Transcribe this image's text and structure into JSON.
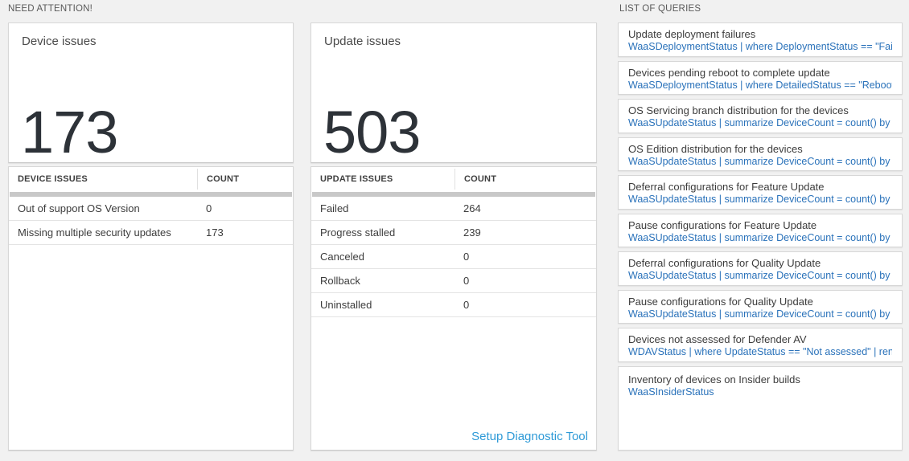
{
  "need_attention": {
    "section_title": "NEED ATTENTION!"
  },
  "device_tile": {
    "title": "Device issues",
    "count": "173"
  },
  "device_table": {
    "col1_header": "DEVICE ISSUES",
    "col2_header": "COUNT",
    "rows": [
      {
        "label": "Out of support OS Version",
        "count": "0"
      },
      {
        "label": "Missing multiple security updates",
        "count": "173"
      }
    ]
  },
  "update_tile": {
    "title": "Update issues",
    "count": "503"
  },
  "update_table": {
    "col1_header": "UPDATE ISSUES",
    "col2_header": "COUNT",
    "rows": [
      {
        "label": "Failed",
        "count": "264"
      },
      {
        "label": "Progress stalled",
        "count": "239"
      },
      {
        "label": "Canceled",
        "count": "0"
      },
      {
        "label": "Rollback",
        "count": "0"
      },
      {
        "label": "Uninstalled",
        "count": "0"
      }
    ],
    "footer_link": "Setup Diagnostic Tool"
  },
  "queries_panel": {
    "section_title": "LIST OF QUERIES",
    "items": [
      {
        "title": "Update deployment failures",
        "query": "WaaSDeploymentStatus | where DeploymentStatus == \"Failed\" |..."
      },
      {
        "title": "Devices pending reboot to complete update",
        "query": "WaaSDeploymentStatus | where DetailedStatus == \"Reboot pend..."
      },
      {
        "title": "OS Servicing branch distribution for the devices",
        "query": "WaaSUpdateStatus | summarize DeviceCount = count() by OSSer..."
      },
      {
        "title": "OS Edition distribution for the devices",
        "query": "WaaSUpdateStatus | summarize DeviceCount = count() by OSEdit..."
      },
      {
        "title": "Deferral configurations for Feature Update",
        "query": "WaaSUpdateStatus | summarize DeviceCount = count() by Featur..."
      },
      {
        "title": "Pause configurations for Feature Update",
        "query": "WaaSUpdateStatus | summarize DeviceCount = count() by Featur..."
      },
      {
        "title": "Deferral configurations for Quality Update",
        "query": "WaaSUpdateStatus | summarize DeviceCount = count() by Qualit..."
      },
      {
        "title": "Pause configurations for Quality Update",
        "query": "WaaSUpdateStatus | summarize DeviceCount = count() by Qualit..."
      },
      {
        "title": "Devices not assessed for Defender AV",
        "query": "WDAVStatus | where UpdateStatus == \"Not assessed\" | render ta..."
      },
      {
        "title": "Inventory of devices on Insider builds",
        "query": "WaaSInsiderStatus"
      }
    ]
  },
  "colors": {
    "query_link_blue": "#2a72ba",
    "diag_link_blue": "#2e9ad7",
    "page_background": "#f1f1f1",
    "scrollbar_gray": "#c8c8c8"
  }
}
